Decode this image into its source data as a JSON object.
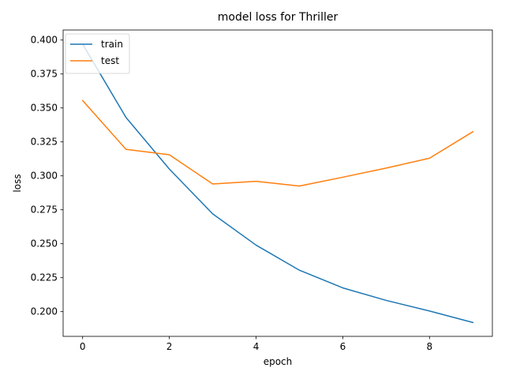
{
  "chart_data": {
    "type": "line",
    "title": "model loss for Thriller",
    "xlabel": "epoch",
    "ylabel": "loss",
    "x": [
      0,
      1,
      2,
      3,
      4,
      5,
      6,
      7,
      8,
      9
    ],
    "series": [
      {
        "name": "train",
        "color": "#1f77b4",
        "values": [
          0.397,
          0.343,
          0.305,
          0.272,
          0.249,
          0.2305,
          0.2175,
          0.2083,
          0.2005,
          0.192
        ]
      },
      {
        "name": "test",
        "color": "#ff7f0e",
        "values": [
          0.3555,
          0.3195,
          0.3155,
          0.294,
          0.296,
          0.2925,
          0.299,
          0.3057,
          0.313,
          0.3325
        ]
      }
    ],
    "xlim": [
      -0.45,
      9.45
    ],
    "ylim": [
      0.1818,
      0.4074
    ],
    "xticks": [
      "0",
      "2",
      "4",
      "6",
      "8"
    ],
    "yticks": [
      "0.200",
      "0.225",
      "0.250",
      "0.275",
      "0.300",
      "0.325",
      "0.350",
      "0.375",
      "0.400"
    ],
    "grid": false,
    "legend_position": "top-left"
  }
}
